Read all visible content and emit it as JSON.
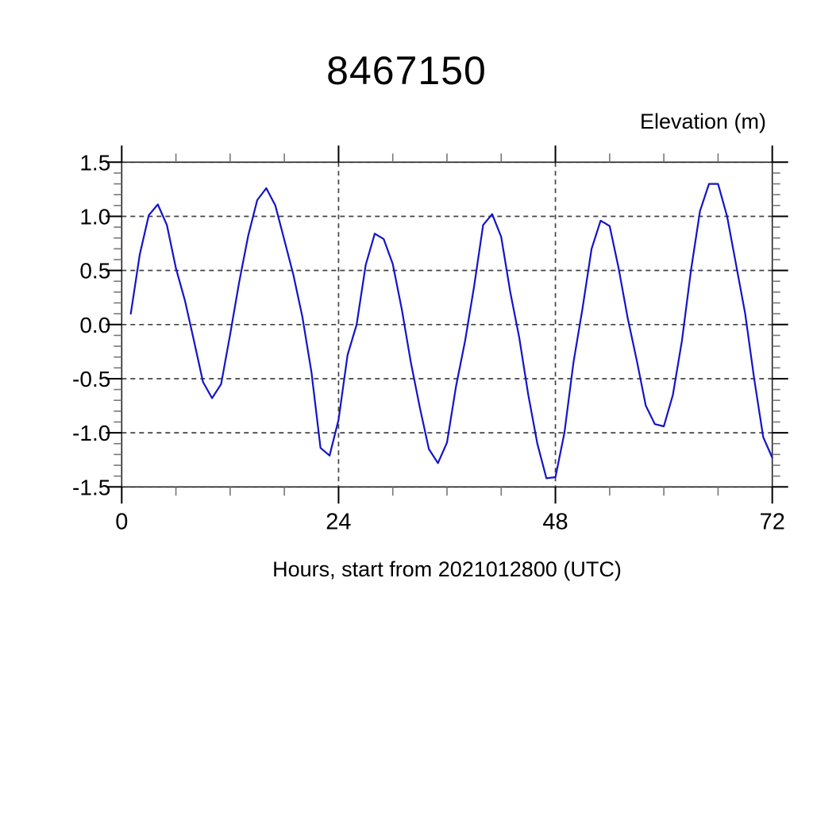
{
  "title": "8467150",
  "y_axis_label": "Elevation (m)",
  "x_axis_label": "Hours, start from 2021012800 (UTC)",
  "colors": {
    "line": "#1414C8",
    "grid": "#444444",
    "axis": "#222222",
    "major_tick": "#000000",
    "minor_tick": "#777777",
    "background": "#FFFFFF",
    "text": "#000000"
  },
  "chart_data": {
    "type": "line",
    "title": "8467150",
    "xlabel": "Hours, start from 2021012800 (UTC)",
    "ylabel": "Elevation (m)",
    "xlim": [
      0,
      72
    ],
    "ylim": [
      -1.5,
      1.5
    ],
    "x_tick_labels": [
      "0",
      "24",
      "48",
      "72"
    ],
    "x_ticks_major": [
      0,
      24,
      48,
      72
    ],
    "x_tick_minor_step": 6,
    "y_tick_labels": [
      "1.5",
      "1.0",
      "0.5",
      "0.0",
      "-0.5",
      "-1.0",
      "-1.5"
    ],
    "y_ticks_major": [
      1.5,
      1.0,
      0.5,
      0.0,
      -0.5,
      -1.0,
      -1.5
    ],
    "y_tick_minor_step": 0.1,
    "grid": {
      "x_lines": [
        24,
        48
      ],
      "y_lines": [
        1.5,
        1.0,
        0.5,
        0.0,
        -0.5,
        -1.0,
        -1.5
      ],
      "style": "dashed"
    },
    "legend": null,
    "series": [
      {
        "name": "elevation",
        "color": "#1414C8",
        "x": [
          1,
          2,
          3,
          4,
          5,
          6,
          7,
          8,
          9,
          10,
          11,
          12,
          13,
          14,
          15,
          16,
          17,
          18,
          19,
          20,
          21,
          22,
          23,
          24,
          25,
          26,
          27,
          28,
          29,
          30,
          31,
          32,
          33,
          34,
          35,
          36,
          37,
          38,
          39,
          40,
          41,
          42,
          43,
          44,
          45,
          46,
          47,
          48,
          49,
          50,
          51,
          52,
          53,
          54,
          55,
          56,
          57,
          58,
          59,
          60,
          61,
          62,
          63,
          64,
          65,
          66,
          67,
          68,
          69,
          70,
          71,
          72
        ],
        "y": [
          0.1,
          0.65,
          1.01,
          1.11,
          0.92,
          0.52,
          0.22,
          -0.15,
          -0.53,
          -0.68,
          -0.55,
          -0.09,
          0.39,
          0.82,
          1.15,
          1.26,
          1.1,
          0.78,
          0.46,
          0.07,
          -0.44,
          -1.14,
          -1.21,
          -0.88,
          -0.28,
          0.0,
          0.55,
          0.84,
          0.79,
          0.56,
          0.14,
          -0.35,
          -0.77,
          -1.15,
          -1.28,
          -1.09,
          -0.57,
          -0.15,
          0.35,
          0.92,
          1.02,
          0.81,
          0.3,
          -0.12,
          -0.65,
          -1.1,
          -1.42,
          -1.41,
          -1.0,
          -0.35,
          0.15,
          0.7,
          0.96,
          0.91,
          0.52,
          0.06,
          -0.33,
          -0.75,
          -0.92,
          -0.94,
          -0.65,
          -0.15,
          0.5,
          1.05,
          1.3,
          1.3,
          1.0,
          0.55,
          0.1,
          -0.5,
          -1.04,
          -1.23
        ]
      }
    ]
  }
}
